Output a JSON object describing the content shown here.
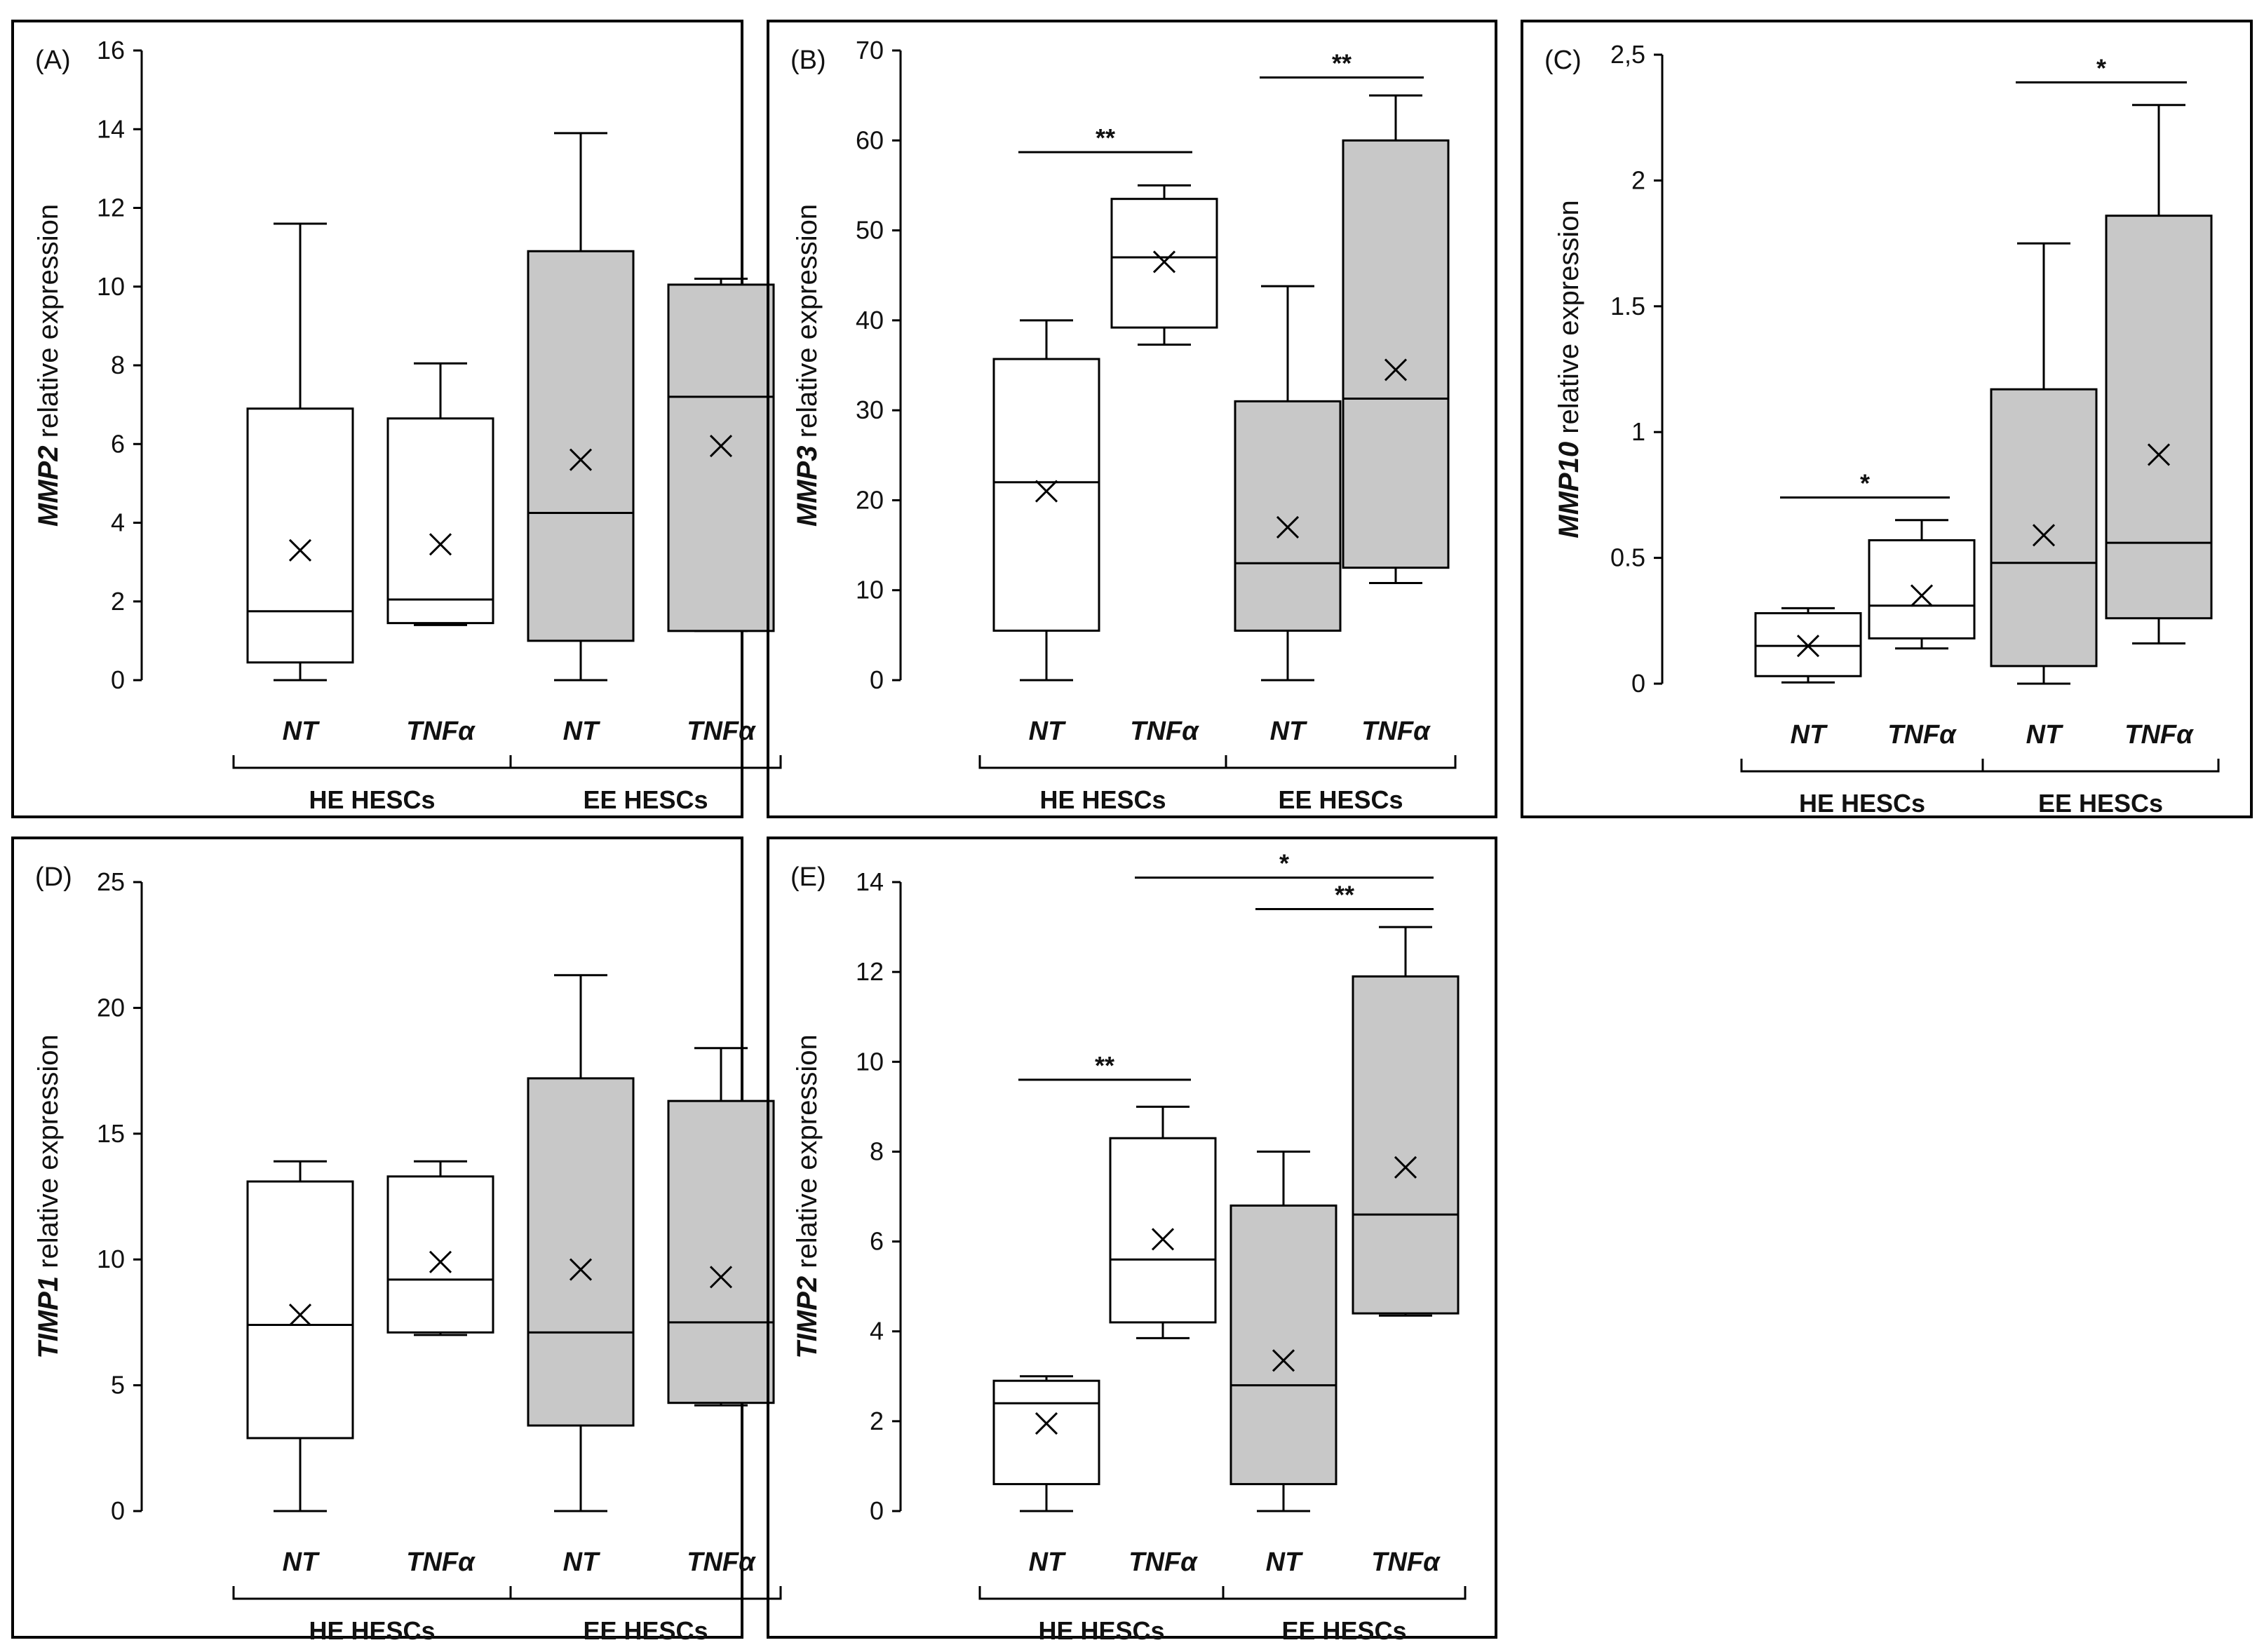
{
  "chart_data": [
    {
      "type": "boxplot",
      "panel_label": "(A)",
      "ylabel_gene": "MMP2",
      "ylabel_rest": " relative expression",
      "ylim": [
        0,
        16
      ],
      "yticks": [
        "0",
        "2",
        "4",
        "6",
        "8",
        "10",
        "12",
        "14",
        "16"
      ],
      "tick_values": [
        0,
        2,
        4,
        6,
        8,
        10,
        12,
        14,
        16
      ],
      "categories": [
        "NT",
        "TNFα",
        "NT",
        "TNFα"
      ],
      "groups": [
        "HE HESCs",
        "EE HESCs"
      ],
      "boxes": [
        {
          "label": "NT",
          "group": "HE HESCs",
          "min": 0,
          "q1": 0.45,
          "median": 1.75,
          "q3": 6.9,
          "max": 11.6,
          "mean": 3.3,
          "fill": "#ffffff"
        },
        {
          "label": "TNFα",
          "group": "HE HESCs",
          "min": 1.4,
          "q1": 1.45,
          "median": 2.05,
          "q3": 6.65,
          "max": 8.05,
          "mean": 3.45,
          "fill": "#ffffff"
        },
        {
          "label": "NT",
          "group": "EE HESCs",
          "min": 0,
          "q1": 1.0,
          "median": 4.25,
          "q3": 10.9,
          "max": 13.9,
          "mean": 5.6,
          "fill": "#c8c8c8"
        },
        {
          "label": "TNFα",
          "group": "EE HESCs",
          "min": 1.25,
          "q1": 1.25,
          "median": 7.2,
          "q3": 10.05,
          "max": 10.2,
          "mean": 5.95,
          "fill": "#c8c8c8"
        }
      ],
      "significance": []
    },
    {
      "type": "boxplot",
      "panel_label": "(B)",
      "ylabel_gene": "MMP3",
      "ylabel_rest": " relative expression",
      "ylim": [
        0,
        70
      ],
      "yticks": [
        "0",
        "10",
        "20",
        "30",
        "40",
        "50",
        "60",
        "70"
      ],
      "tick_values": [
        0,
        10,
        20,
        30,
        40,
        50,
        60,
        70
      ],
      "categories": [
        "NT",
        "TNFα",
        "NT",
        "TNFα"
      ],
      "groups": [
        "HE HESCs",
        "EE HESCs"
      ],
      "boxes": [
        {
          "label": "NT",
          "group": "HE HESCs",
          "min": 0,
          "q1": 5.5,
          "median": 22,
          "q3": 35.7,
          "max": 40,
          "mean": 21,
          "fill": "#ffffff"
        },
        {
          "label": "TNFα",
          "group": "HE HESCs",
          "min": 37.3,
          "q1": 39.2,
          "median": 47,
          "q3": 53.5,
          "max": 55,
          "mean": 46.5,
          "fill": "#ffffff"
        },
        {
          "label": "NT",
          "group": "EE HESCs",
          "min": 0,
          "q1": 5.5,
          "median": 13,
          "q3": 31,
          "max": 43.8,
          "mean": 17,
          "fill": "#c8c8c8"
        },
        {
          "label": "TNFα",
          "group": "EE HESCs",
          "min": 10.8,
          "q1": 12.5,
          "median": 31.3,
          "q3": 60,
          "max": 65,
          "mean": 34.5,
          "fill": "#c8c8c8"
        }
      ],
      "significance": [
        {
          "from": 0,
          "to": 1,
          "value": 58.7,
          "label": "**"
        },
        {
          "from": 2,
          "to": 3,
          "value": 67,
          "label": "**"
        }
      ]
    },
    {
      "type": "boxplot",
      "panel_label": "(C)",
      "ylabel_gene": "MMP10",
      "ylabel_rest": " relative expression",
      "ylim": [
        0,
        2.5
      ],
      "yticks": [
        "0",
        "0.5",
        "1",
        "1.5",
        "2",
        "2,5"
      ],
      "tick_values": [
        0,
        0.5,
        1,
        1.5,
        2,
        2.5
      ],
      "categories": [
        "NT",
        "TNFα",
        "NT",
        "TNFα"
      ],
      "groups": [
        "HE HESCs",
        "EE HESCs"
      ],
      "boxes": [
        {
          "label": "NT",
          "group": "HE HESCs",
          "min": 0.005,
          "q1": 0.03,
          "median": 0.15,
          "q3": 0.28,
          "max": 0.3,
          "mean": 0.15,
          "fill": "#ffffff"
        },
        {
          "label": "TNFα",
          "group": "HE HESCs",
          "min": 0.14,
          "q1": 0.18,
          "median": 0.31,
          "q3": 0.57,
          "max": 0.65,
          "mean": 0.35,
          "fill": "#ffffff"
        },
        {
          "label": "NT",
          "group": "EE HESCs",
          "min": 0,
          "q1": 0.07,
          "median": 0.48,
          "q3": 1.17,
          "max": 1.75,
          "mean": 0.59,
          "fill": "#c8c8c8"
        },
        {
          "label": "TNFα",
          "group": "EE HESCs",
          "min": 0.16,
          "q1": 0.26,
          "median": 0.56,
          "q3": 1.86,
          "max": 2.3,
          "mean": 0.91,
          "fill": "#c8c8c8"
        }
      ],
      "significance": [
        {
          "from": 0,
          "to": 1,
          "value": 0.74,
          "label": "*"
        },
        {
          "from": 2,
          "to": 3,
          "value": 2.39,
          "label": "*"
        }
      ]
    },
    {
      "type": "boxplot",
      "panel_label": "(D)",
      "ylabel_gene": "TIMP1",
      "ylabel_rest": " relative expression",
      "ylim": [
        0,
        25
      ],
      "yticks": [
        "0",
        "5",
        "10",
        "15",
        "20",
        "25"
      ],
      "tick_values": [
        0,
        5,
        10,
        15,
        20,
        25
      ],
      "categories": [
        "NT",
        "TNFα",
        "NT",
        "TNFα"
      ],
      "groups": [
        "HE HESCs",
        "EE HESCs"
      ],
      "boxes": [
        {
          "label": "NT",
          "group": "HE HESCs",
          "min": 0,
          "q1": 2.9,
          "median": 7.4,
          "q3": 13.1,
          "max": 13.9,
          "mean": 7.8,
          "fill": "#ffffff"
        },
        {
          "label": "TNFα",
          "group": "HE HESCs",
          "min": 7.0,
          "q1": 7.1,
          "median": 9.2,
          "q3": 13.3,
          "max": 13.9,
          "mean": 9.9,
          "fill": "#ffffff"
        },
        {
          "label": "NT",
          "group": "EE HESCs",
          "min": 0,
          "q1": 3.4,
          "median": 7.1,
          "q3": 17.2,
          "max": 21.3,
          "mean": 9.6,
          "fill": "#c8c8c8"
        },
        {
          "label": "TNFα",
          "group": "EE HESCs",
          "min": 4.2,
          "q1": 4.3,
          "median": 7.5,
          "q3": 16.3,
          "max": 18.4,
          "mean": 9.3,
          "fill": "#c8c8c8"
        }
      ],
      "significance": []
    },
    {
      "type": "boxplot",
      "panel_label": "(E)",
      "ylabel_gene": "TIMP2",
      "ylabel_rest": " relative expression",
      "ylim": [
        0,
        14
      ],
      "yticks": [
        "0",
        "2",
        "4",
        "6",
        "8",
        "10",
        "12",
        "14"
      ],
      "tick_values": [
        0,
        2,
        4,
        6,
        8,
        10,
        12,
        14
      ],
      "categories": [
        "NT",
        "TNFα",
        "NT",
        "TNFα"
      ],
      "groups": [
        "HE HESCs",
        "EE HESCs"
      ],
      "boxes": [
        {
          "label": "NT",
          "group": "HE HESCs",
          "min": 0,
          "q1": 0.6,
          "median": 2.4,
          "q3": 2.9,
          "max": 3.0,
          "mean": 1.95,
          "fill": "#ffffff"
        },
        {
          "label": "TNFα",
          "group": "HE HESCs",
          "min": 3.85,
          "q1": 4.2,
          "median": 5.6,
          "q3": 8.3,
          "max": 9.0,
          "mean": 6.05,
          "fill": "#ffffff"
        },
        {
          "label": "NT",
          "group": "EE HESCs",
          "min": 0,
          "q1": 0.6,
          "median": 2.8,
          "q3": 6.8,
          "max": 8.0,
          "mean": 3.35,
          "fill": "#c8c8c8"
        },
        {
          "label": "TNFα",
          "group": "EE HESCs",
          "min": 4.35,
          "q1": 4.4,
          "median": 6.6,
          "q3": 11.9,
          "max": 13.0,
          "mean": 7.65,
          "fill": "#c8c8c8"
        }
      ],
      "significance": [
        {
          "from": 0,
          "to": 1,
          "value": 9.6,
          "label": "**"
        },
        {
          "from": 2,
          "to": 3,
          "value": 13.4,
          "label": "**"
        },
        {
          "from": 1,
          "to": 3,
          "value": 14.1,
          "label": "*"
        }
      ]
    }
  ]
}
